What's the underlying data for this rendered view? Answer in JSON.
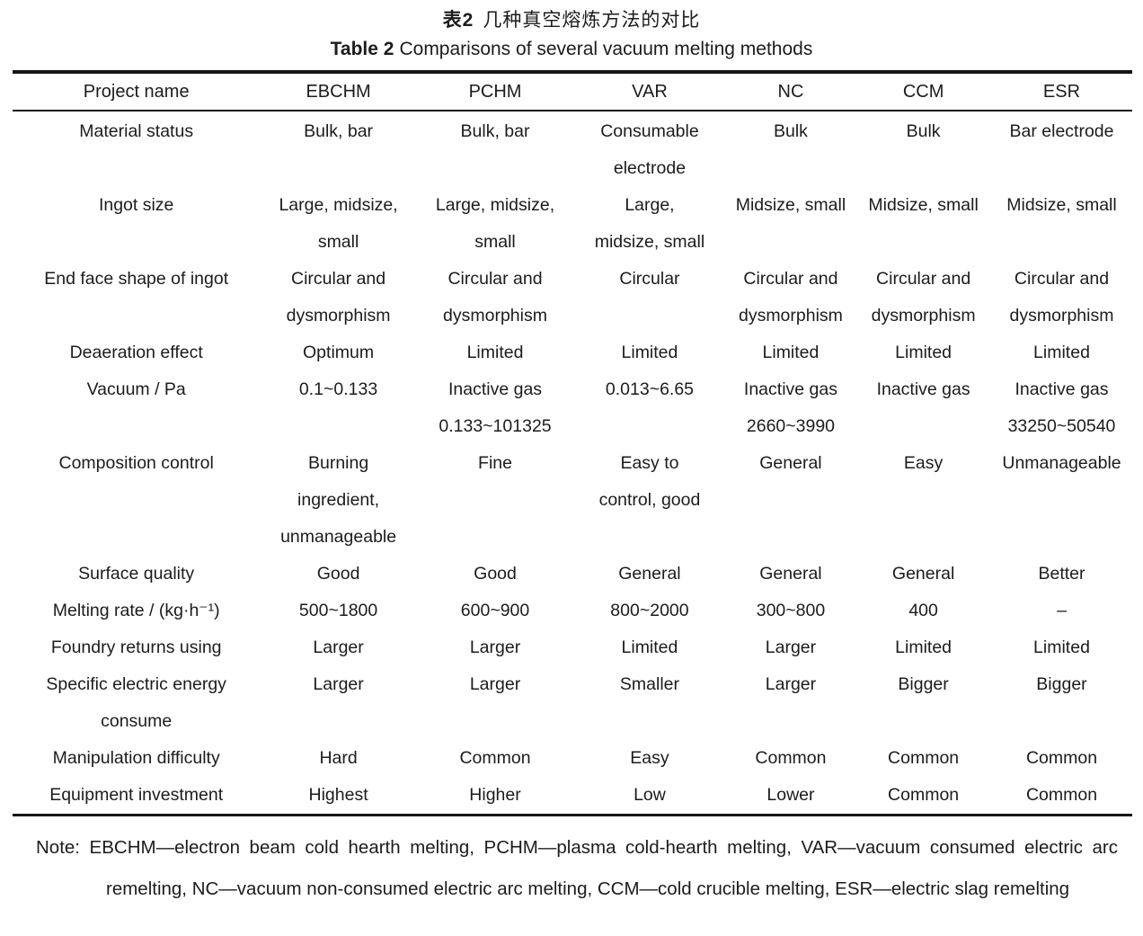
{
  "title": {
    "zh_label": "表2",
    "zh_text": "几种真空熔炼方法的对比",
    "en_label": "Table 2",
    "en_text": "Comparisons of several vacuum melting methods"
  },
  "table": {
    "columns": [
      "Project name",
      "EBCHM",
      "PCHM",
      "VAR",
      "NC",
      "CCM",
      "ESR"
    ],
    "rows": [
      {
        "label": "Material status",
        "cells": [
          "Bulk, bar",
          "Bulk, bar",
          "Consumable\nelectrode",
          "Bulk",
          "Bulk",
          "Bar electrode"
        ]
      },
      {
        "label": "Ingot size",
        "cells": [
          "Large, midsize,\nsmall",
          "Large, midsize,\nsmall",
          "Large,\nmidsize, small",
          "Midsize, small",
          "Midsize, small",
          "Midsize, small"
        ]
      },
      {
        "label": "End face shape of ingot",
        "cells": [
          "Circular and\ndysmorphism",
          "Circular and\ndysmorphism",
          "Circular",
          "Circular and\ndysmorphism",
          "Circular and\ndysmorphism",
          "Circular and\ndysmorphism"
        ]
      },
      {
        "label": "Deaeration effect",
        "cells": [
          "Optimum",
          "Limited",
          "Limited",
          "Limited",
          "Limited",
          "Limited"
        ]
      },
      {
        "label": "Vacuum / Pa",
        "cells": [
          "0.1~0.133",
          "Inactive gas\n0.133~101325",
          "0.013~6.65",
          "Inactive gas\n2660~3990",
          "Inactive gas",
          "Inactive gas\n33250~50540"
        ]
      },
      {
        "label": "Composition control",
        "cells": [
          "Burning\ningredient,\nunmanageable",
          "Fine",
          "Easy to\ncontrol, good",
          "General",
          "Easy",
          "Unmanageable"
        ]
      },
      {
        "label": "Surface quality",
        "cells": [
          "Good",
          "Good",
          "General",
          "General",
          "General",
          "Better"
        ]
      },
      {
        "label": "Melting rate / (kg·h⁻¹)",
        "cells": [
          "500~1800",
          "600~900",
          "800~2000",
          "300~800",
          "400",
          "–"
        ]
      },
      {
        "label": "Foundry returns using",
        "cells": [
          "Larger",
          "Larger",
          "Limited",
          "Larger",
          "Limited",
          "Limited"
        ]
      },
      {
        "label": "Specific electric energy\nconsume",
        "cells": [
          "Larger",
          "Larger",
          "Smaller",
          "Larger",
          "Bigger",
          "Bigger"
        ]
      },
      {
        "label": "Manipulation difficulty",
        "cells": [
          "Hard",
          "Common",
          "Easy",
          "Common",
          "Common",
          "Common"
        ]
      },
      {
        "label": "Equipment investment",
        "cells": [
          "Highest",
          "Higher",
          "Low",
          "Lower",
          "Common",
          "Common"
        ]
      }
    ]
  },
  "note": {
    "label": "Note:",
    "text": "EBCHM—electron beam cold hearth melting, PCHM—plasma cold-hearth melting, VAR—vacuum consumed electric arc remelting, NC—vacuum non-consumed electric arc melting, CCM—cold crucible melting, ESR—electric slag remelting"
  },
  "colors": {
    "text": "#1c1c1c",
    "rule": "#151515",
    "background": "#ffffff"
  }
}
